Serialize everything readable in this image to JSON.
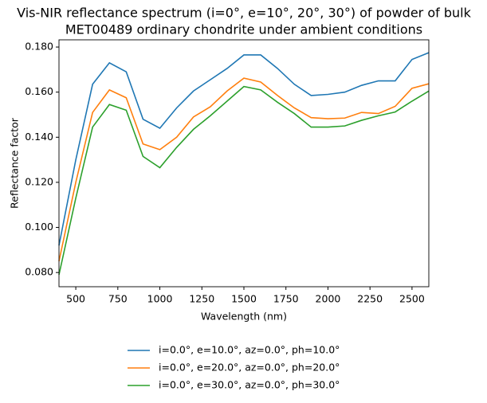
{
  "chart_data": {
    "type": "line",
    "title": [
      "Vis-NIR reflectance spectrum (i=0°, e=10°, 20°, 30°) of powder of bulk",
      "MET00489 ordinary chondrite under ambient conditions"
    ],
    "x_label": "Wavelength (nm)",
    "y_label": "Reflectance factor",
    "x": [
      400,
      500,
      600,
      700,
      800,
      900,
      1000,
      1100,
      1200,
      1300,
      1400,
      1500,
      1600,
      1700,
      1800,
      1900,
      2000,
      2100,
      2200,
      2300,
      2400,
      2500,
      2600
    ],
    "series": [
      {
        "name": "i=0.0°, e=10.0°, az=0.0°, ph=10.0°",
        "color": "#1f77b4",
        "values": [
          0.092,
          0.13,
          0.1635,
          0.173,
          0.169,
          0.148,
          0.144,
          0.153,
          0.1605,
          0.1655,
          0.1705,
          0.1765,
          0.1765,
          0.1705,
          0.1635,
          0.1585,
          0.159,
          0.16,
          0.163,
          0.165,
          0.165,
          0.1745,
          0.1775
        ]
      },
      {
        "name": "i=0.0°, e=20.0°, az=0.0°, ph=20.0°",
        "color": "#ff7f0e",
        "values": [
          0.085,
          0.12,
          0.151,
          0.161,
          0.1575,
          0.137,
          0.1345,
          0.14,
          0.149,
          0.1535,
          0.1605,
          0.1662,
          0.1645,
          0.1585,
          0.153,
          0.1487,
          0.1482,
          0.1485,
          0.151,
          0.1505,
          0.1537,
          0.1617,
          0.1637
        ]
      },
      {
        "name": "i=0.0°, e=30.0°, az=0.0°, ph=30.0°",
        "color": "#2ca02c",
        "values": [
          0.079,
          0.113,
          0.1445,
          0.1545,
          0.152,
          0.1315,
          0.1265,
          0.1355,
          0.1435,
          0.1495,
          0.156,
          0.1625,
          0.161,
          0.1555,
          0.1505,
          0.1445,
          0.1445,
          0.145,
          0.1475,
          0.1495,
          0.1512,
          0.156,
          0.1605
        ]
      }
    ],
    "xlim": [
      400,
      2600
    ],
    "xticks": [
      500,
      750,
      1000,
      1250,
      1500,
      1750,
      2000,
      2250,
      2500
    ],
    "ylim": [
      0.0737,
      0.1832
    ],
    "yticks": [
      {
        "value": 0.08,
        "label": "0.080"
      },
      {
        "value": 0.1,
        "label": "0.100"
      },
      {
        "value": 0.12,
        "label": "0.120"
      },
      {
        "value": 0.14,
        "label": "0.140"
      },
      {
        "value": 0.16,
        "label": "0.160"
      },
      {
        "value": 0.18,
        "label": "0.180"
      }
    ],
    "grid": false,
    "legend": "below"
  }
}
